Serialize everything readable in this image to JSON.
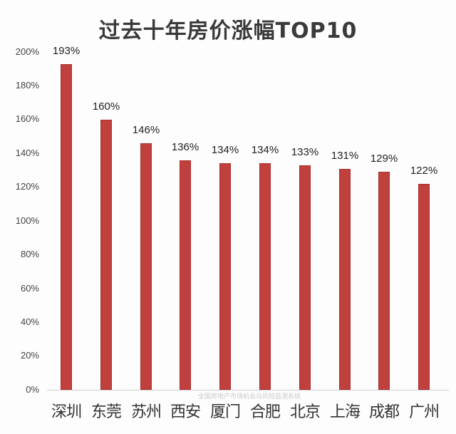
{
  "chart_data": {
    "type": "bar",
    "title": "过去十年房价涨幅TOP10",
    "xlabel": "",
    "ylabel": "",
    "categories": [
      "深圳",
      "东莞",
      "苏州",
      "西安",
      "厦门",
      "合肥",
      "北京",
      "上海",
      "成都",
      "广州"
    ],
    "values": [
      193,
      160,
      146,
      136,
      134,
      134,
      133,
      131,
      129,
      122
    ],
    "value_labels": [
      "193%",
      "160%",
      "146%",
      "136%",
      "134%",
      "134%",
      "133%",
      "131%",
      "129%",
      "122%"
    ],
    "yticks": [
      "0%",
      "20%",
      "40%",
      "60%",
      "80%",
      "100%",
      "120%",
      "140%",
      "160%",
      "180%",
      "200%"
    ],
    "ylim": [
      0,
      200
    ],
    "unit": "%",
    "grid": false,
    "legend": null,
    "bar_color": "#c0403e"
  },
  "watermark": "全国房地产市场机会与风险监测系统"
}
